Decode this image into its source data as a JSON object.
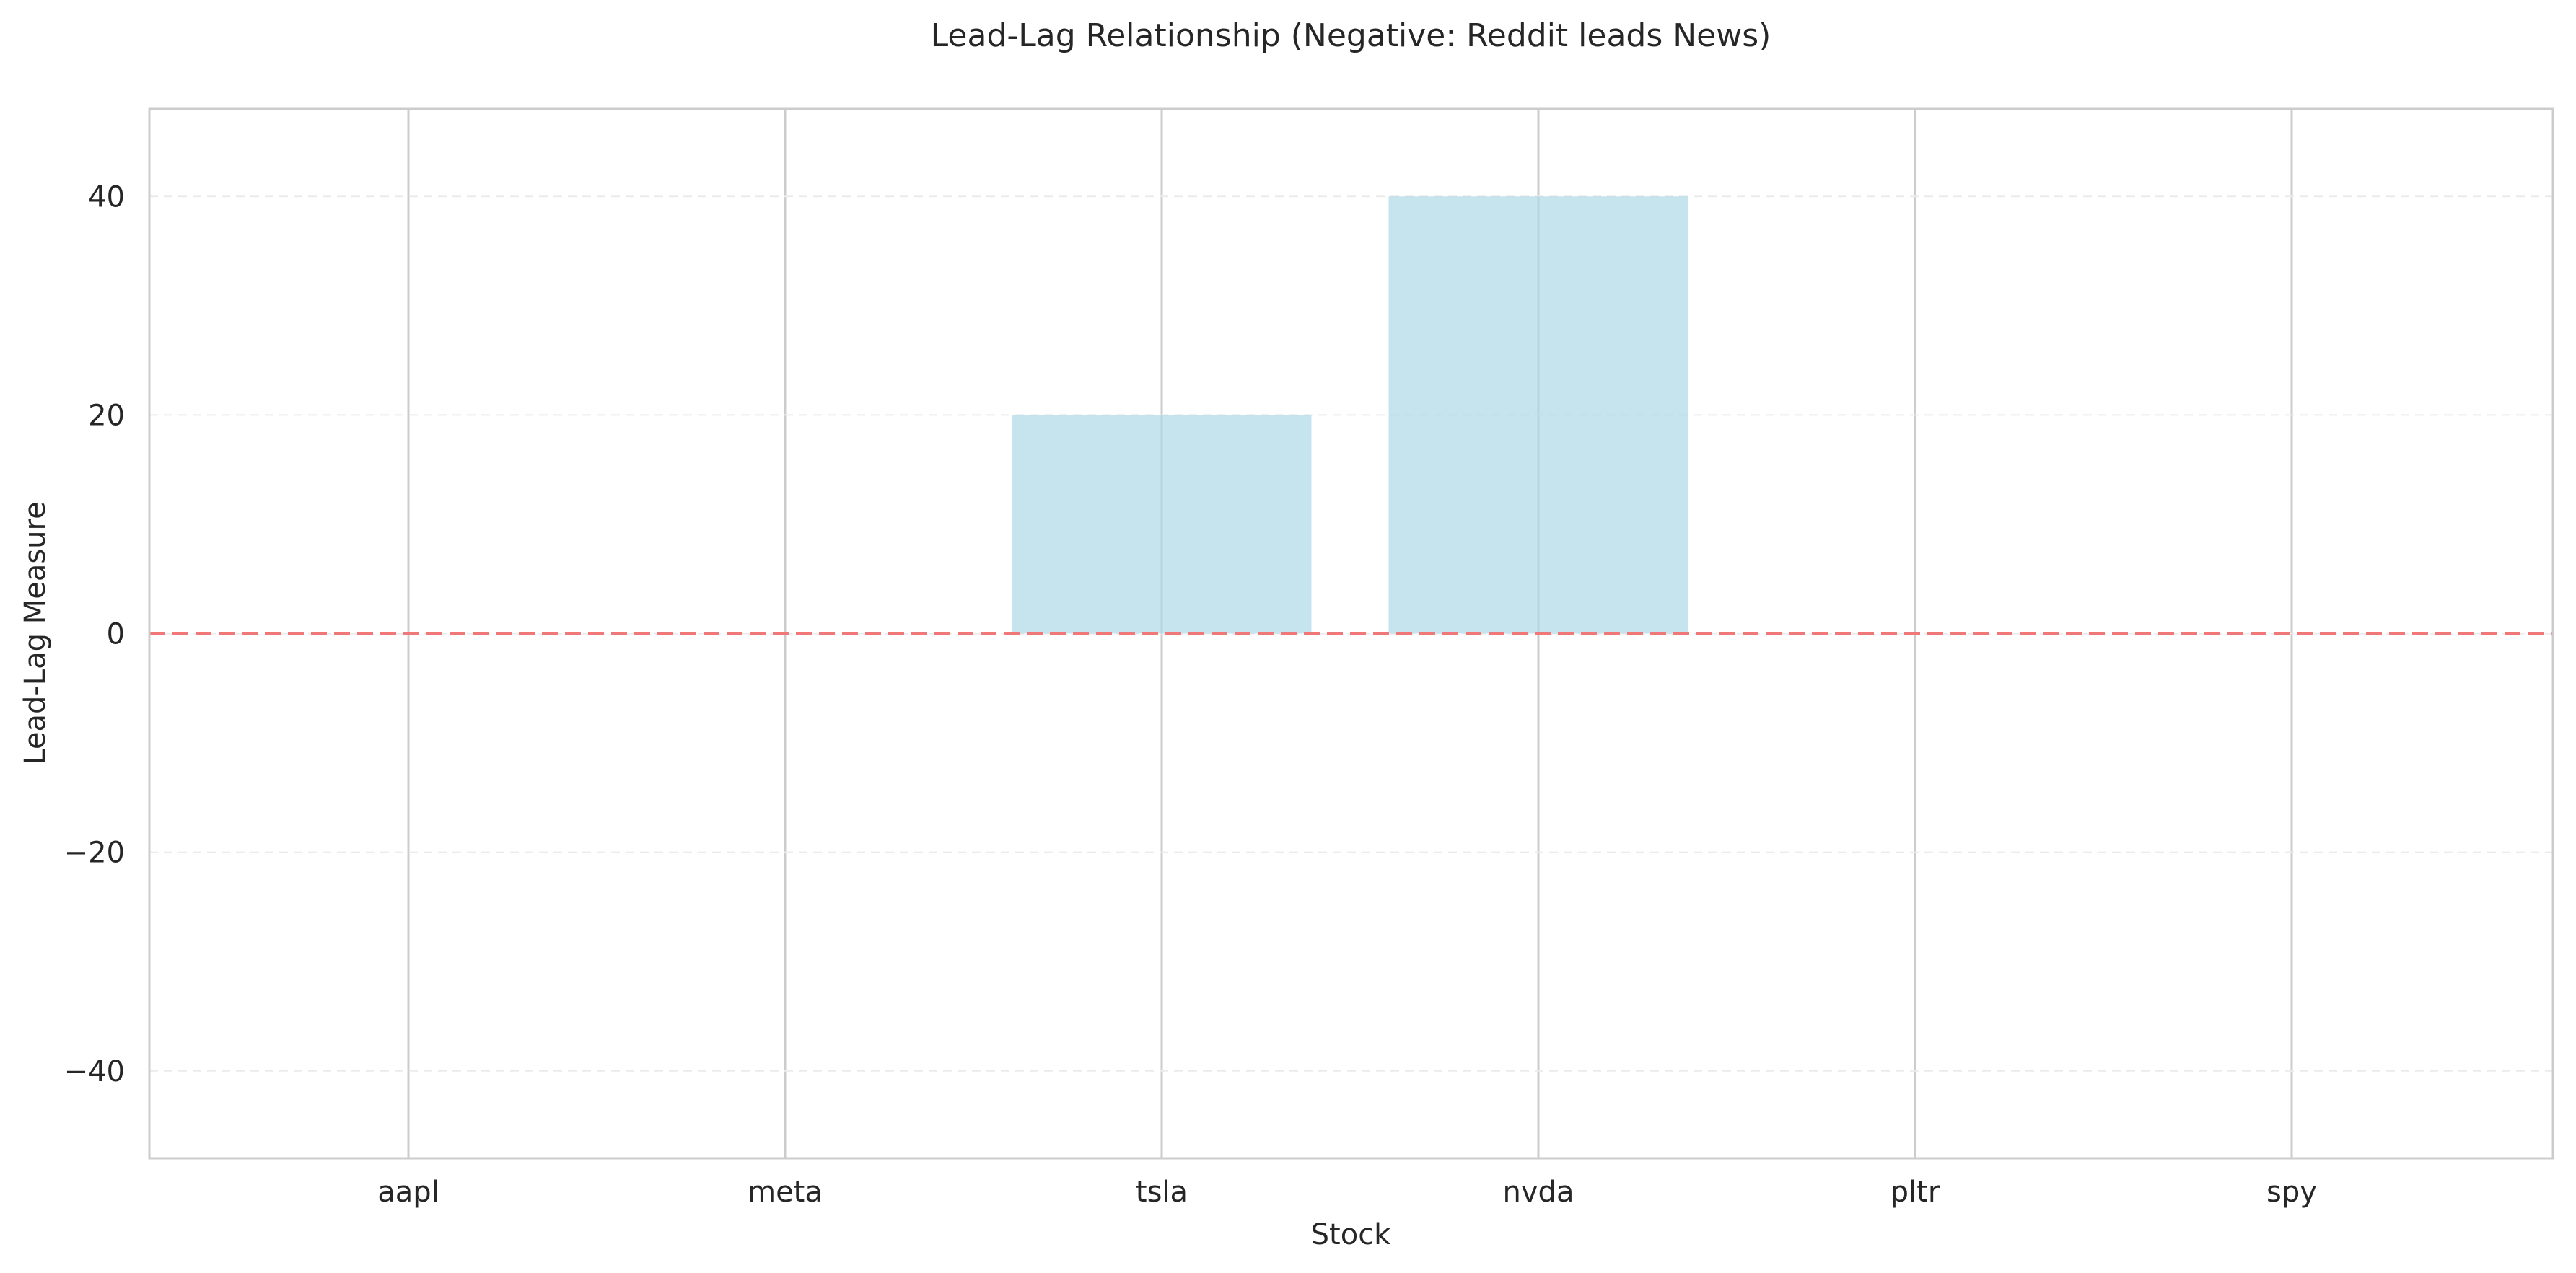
{
  "chart_data": {
    "type": "bar",
    "title": "Lead-Lag Relationship (Negative: Reddit leads News)",
    "xlabel": "Stock",
    "ylabel": "Lead-Lag Measure",
    "categories": [
      "aapl",
      "meta",
      "tsla",
      "nvda",
      "pltr",
      "spy"
    ],
    "values": [
      0,
      0,
      20,
      40,
      0,
      0
    ],
    "ylim": [
      -48,
      48
    ],
    "yticks": [
      -40,
      -20,
      0,
      20,
      40
    ],
    "ytick_labels": [
      "−40",
      "−20",
      "0",
      "20",
      "40"
    ],
    "reference_line": {
      "y": 0,
      "style": "dashed",
      "color": "#f07878"
    },
    "bar_color": "#add8e6",
    "grid": {
      "x": true,
      "y": true,
      "y_style": "dashed"
    },
    "legend": "none"
  }
}
